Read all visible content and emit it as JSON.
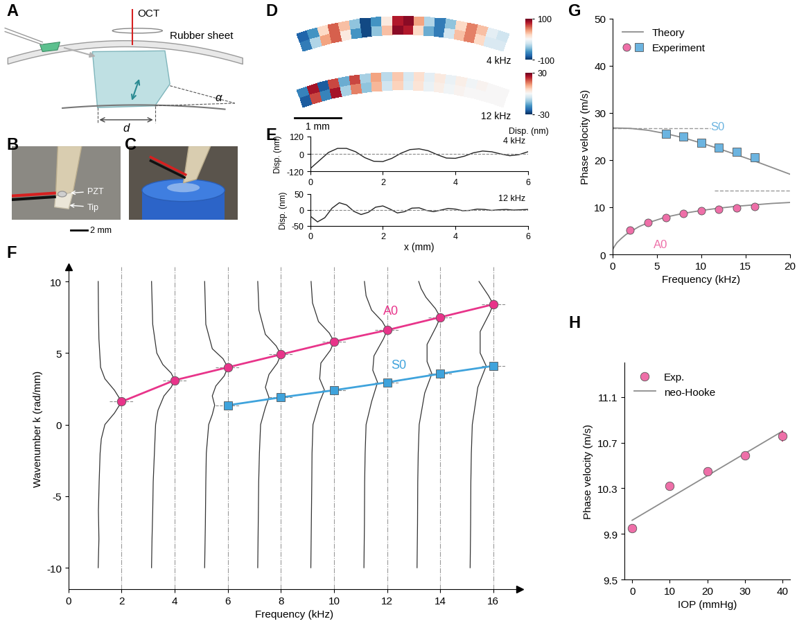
{
  "chart_data": [
    {
      "type": "heatmap",
      "panel": "D",
      "x_extent": [
        0,
        4.7
      ],
      "scale_bar": {
        "length": 1,
        "label": "1 mm"
      },
      "colorbar_label": "Disp. (nm)",
      "maps": [
        {
          "annotation": "4 kHz",
          "colorbar_range": [
            -100,
            100
          ],
          "colorbar_ticks": [
            -100,
            100
          ],
          "cells": [
            [
              -80,
              -60,
              20,
              60,
              30,
              -40,
              -90,
              -60,
              10,
              80,
              90,
              40,
              -30,
              -70,
              -40,
              20,
              50,
              30,
              -10,
              -20
            ],
            [
              -70,
              -30,
              40,
              60,
              10,
              -60,
              -90,
              -40,
              30,
              90,
              80,
              20,
              -50,
              -70,
              -20,
              30,
              50,
              20,
              -15,
              -15
            ]
          ]
        },
        {
          "annotation": "12 kHz",
          "colorbar_range": [
            -30,
            30
          ],
          "colorbar_ticks": [
            -30,
            30
          ],
          "cells": [
            [
              -20,
              25,
              -25,
              20,
              -15,
              20,
              -10,
              12,
              -8,
              8,
              -5,
              5,
              -3,
              3,
              -2,
              2,
              -1,
              1,
              0,
              0
            ],
            [
              -25,
              20,
              -20,
              25,
              -10,
              15,
              -12,
              10,
              -6,
              7,
              -4,
              4,
              -2,
              2,
              -1,
              1,
              0,
              0,
              0,
              0
            ]
          ]
        }
      ]
    },
    {
      "type": "line",
      "panel": "E",
      "annotation": "4 kHz",
      "ylabel": "Disp. (nm)",
      "color": "#222222",
      "baseline": 0,
      "x": [
        0,
        0.25,
        0.5,
        0.75,
        1,
        1.25,
        1.5,
        1.75,
        2,
        2.25,
        2.5,
        2.75,
        3,
        3.25,
        3.5,
        3.75,
        4,
        4.25,
        4.5,
        4.75,
        5,
        5.25,
        5.5,
        5.75,
        6
      ],
      "values": [
        -100,
        -45,
        10,
        38,
        38,
        15,
        -25,
        -50,
        -52,
        -30,
        5,
        30,
        35,
        22,
        -5,
        -28,
        -30,
        -15,
        8,
        20,
        15,
        0,
        -12,
        -5,
        15
      ],
      "xlim": [
        0,
        6
      ],
      "ylim": [
        -120,
        120
      ],
      "xticks": [
        0,
        2,
        4,
        6
      ],
      "yticks": [
        -120,
        0,
        120
      ]
    },
    {
      "type": "line",
      "annotation": "12 kHz",
      "ylabel": "Disp. (nm)",
      "xlabel": "x (mm)",
      "color": "#222222",
      "baseline": 0,
      "x": [
        0,
        0.2,
        0.4,
        0.6,
        0.8,
        1.0,
        1.2,
        1.4,
        1.6,
        1.8,
        2.0,
        2.2,
        2.4,
        2.6,
        2.8,
        3.0,
        3.2,
        3.4,
        3.6,
        3.8,
        4.0,
        4.2,
        4.4,
        4.6,
        4.8,
        5.0,
        5.2,
        5.4,
        5.6,
        5.8,
        6.0
      ],
      "values": [
        -20,
        -38,
        -25,
        5,
        22,
        15,
        -5,
        -15,
        -8,
        8,
        12,
        2,
        -10,
        -6,
        5,
        6,
        -2,
        -6,
        -1,
        4,
        2,
        -3,
        -2,
        2,
        1,
        -2,
        0,
        1,
        -1,
        0,
        1
      ],
      "xlim": [
        0,
        6
      ],
      "ylim": [
        -50,
        50
      ],
      "xticks": [
        0,
        2,
        4,
        6
      ],
      "yticks": [
        -50,
        0,
        50
      ]
    },
    {
      "type": "line",
      "panel": "F",
      "xlabel": "Frequency (kHz)",
      "ylabel": "Wavenumber k (rad/mm)",
      "xlim": [
        0,
        17
      ],
      "ylim": [
        -11.5,
        11
      ],
      "xticks": [
        0,
        2,
        4,
        6,
        8,
        10,
        12,
        14,
        16
      ],
      "yticks": [
        -10,
        -5,
        0,
        5,
        10
      ],
      "spectra": [
        {
          "frequency": 2,
          "k": [
            -10,
            -8,
            -6,
            -4,
            -2,
            -1,
            0,
            0.8,
            1.6,
            2.4,
            3.2,
            4,
            6,
            8,
            10
          ],
          "amplitude": [
            0.02,
            0.05,
            0.03,
            0.06,
            0.1,
            0.15,
            0.3,
            0.7,
            1.0,
            0.7,
            0.3,
            0.12,
            0.05,
            0.03,
            0.02
          ]
        },
        {
          "frequency": 4,
          "k": [
            -10,
            -8,
            -6,
            -4,
            -2,
            0,
            1,
            2,
            2.6,
            3.1,
            3.6,
            4.2,
            5,
            7,
            10
          ],
          "amplitude": [
            0.03,
            0.05,
            0.08,
            0.1,
            0.15,
            0.2,
            0.3,
            0.55,
            0.85,
            1.0,
            0.85,
            0.5,
            0.25,
            0.08,
            0.03
          ]
        },
        {
          "frequency": 6,
          "k": [
            -10,
            -7,
            -4,
            -2,
            0,
            0.7,
            1.35,
            2,
            2.7,
            3.4,
            4.0,
            4.6,
            5.3,
            7,
            10
          ],
          "amplitude": [
            0.03,
            0.06,
            0.08,
            0.1,
            0.2,
            0.35,
            0.45,
            0.35,
            0.5,
            0.85,
            1.0,
            0.8,
            0.35,
            0.08,
            0.03
          ]
        },
        {
          "frequency": 8,
          "k": [
            -10,
            -7,
            -4,
            -2,
            0,
            1.2,
            1.9,
            2.6,
            3.5,
            4.3,
            4.9,
            5.5,
            6.3,
            8,
            10
          ],
          "amplitude": [
            0.03,
            0.05,
            0.07,
            0.1,
            0.15,
            0.35,
            0.5,
            0.35,
            0.5,
            0.85,
            1.0,
            0.8,
            0.35,
            0.08,
            0.03
          ]
        },
        {
          "frequency": 10,
          "k": [
            -10,
            -7,
            -4,
            -2,
            0,
            1.6,
            2.4,
            3.2,
            4.3,
            5.2,
            5.8,
            6.4,
            7.2,
            8.5,
            10
          ],
          "amplitude": [
            0.03,
            0.05,
            0.07,
            0.08,
            0.12,
            0.4,
            0.6,
            0.4,
            0.45,
            0.85,
            1.0,
            0.8,
            0.35,
            0.1,
            0.04
          ]
        },
        {
          "frequency": 12,
          "k": [
            -10,
            -7,
            -4,
            -2,
            0,
            1.6,
            2.95,
            3.8,
            4.8,
            6.0,
            6.6,
            7.2,
            8.0,
            9,
            10
          ],
          "amplitude": [
            0.03,
            0.05,
            0.06,
            0.08,
            0.12,
            0.35,
            0.6,
            0.4,
            0.45,
            0.85,
            1.0,
            0.8,
            0.35,
            0.12,
            0.05
          ]
        },
        {
          "frequency": 14,
          "k": [
            -10,
            -7,
            -4,
            -2,
            0,
            2.2,
            3.55,
            4.4,
            5.6,
            6.9,
            7.5,
            8.1,
            8.9,
            9.5,
            10
          ],
          "amplitude": [
            0.03,
            0.05,
            0.06,
            0.08,
            0.12,
            0.35,
            0.65,
            0.45,
            0.45,
            0.85,
            1.0,
            0.8,
            0.4,
            0.2,
            0.1
          ]
        },
        {
          "frequency": 16,
          "k": [
            -10,
            -7,
            -4,
            -2,
            0,
            2.6,
            4.1,
            5.0,
            6.5,
            7.8,
            8.4,
            9.0,
            9.5,
            10
          ],
          "amplitude": [
            0.03,
            0.05,
            0.06,
            0.08,
            0.12,
            0.35,
            0.7,
            0.45,
            0.45,
            0.85,
            1.0,
            0.8,
            0.6,
            0.4
          ]
        }
      ],
      "series": [
        {
          "name": "A0",
          "color": "#e8348a",
          "marker": "circle",
          "x": [
            2,
            4,
            6,
            8,
            10,
            12,
            14,
            16
          ],
          "values": [
            1.6,
            3.1,
            4.0,
            4.9,
            5.8,
            6.6,
            7.5,
            8.4
          ]
        },
        {
          "name": "S0",
          "color": "#3fa3dc",
          "marker": "square",
          "x": [
            6,
            8,
            10,
            12,
            14,
            16
          ],
          "values": [
            1.35,
            1.9,
            2.4,
            2.95,
            3.55,
            4.1
          ]
        }
      ]
    },
    {
      "type": "line",
      "panel": "G",
      "xlabel": "Frequency (kHz)",
      "ylabel": "Phase velocity (m/s)",
      "xlim": [
        0,
        20
      ],
      "ylim": [
        0,
        50
      ],
      "xticks": [
        0,
        5,
        10,
        15,
        20
      ],
      "yticks": [
        0,
        10,
        20,
        30,
        40,
        50
      ],
      "legend": "upper left",
      "theory_name": "Theory",
      "experiment_name": "Experiment",
      "theory_color": "#8c8c8c",
      "series": [
        {
          "name": "S0",
          "color": "#6cb4e0",
          "marker": "square",
          "theory_x": [
            0,
            2,
            4,
            6,
            8,
            10,
            12,
            14,
            16,
            18,
            20
          ],
          "theory_values": [
            26.8,
            26.7,
            26.3,
            25.6,
            24.7,
            23.6,
            22.4,
            21.1,
            19.8,
            18.4,
            17.0
          ],
          "x": [
            6,
            8,
            10,
            12,
            14,
            16
          ],
          "values": [
            25.5,
            24.9,
            23.6,
            22.6,
            21.7,
            20.5
          ],
          "asymptote": 26.8,
          "asymptote_x": [
            0,
            11
          ]
        },
        {
          "name": "A0",
          "color": "#ee6fa8",
          "marker": "circle",
          "theory_x": [
            0,
            0.25,
            0.5,
            1,
            1.5,
            2,
            3,
            4,
            6,
            8,
            10,
            12,
            14,
            16,
            18,
            20
          ],
          "theory_values": [
            1.0,
            1.8,
            2.5,
            3.4,
            4.2,
            4.8,
            5.9,
            6.7,
            7.9,
            8.7,
            9.3,
            9.8,
            10.2,
            10.5,
            10.8,
            11.0
          ],
          "x": [
            2,
            4,
            6,
            8,
            10,
            12,
            14,
            16
          ],
          "values": [
            5.2,
            6.7,
            7.8,
            8.6,
            9.3,
            9.6,
            9.9,
            10.2
          ],
          "asymptote": 13.5,
          "asymptote_x": [
            11.5,
            20
          ]
        }
      ]
    },
    {
      "type": "scatter",
      "panel": "H",
      "xlabel": "IOP (mmHg)",
      "ylabel": "Phase velocity (m/s)",
      "xlim": [
        -2,
        42
      ],
      "ylim": [
        9.5,
        11.4
      ],
      "xticks": [
        0,
        10,
        20,
        30,
        40
      ],
      "yticks": [
        9.5,
        9.9,
        10.3,
        10.7,
        11.1
      ],
      "legend": "upper left",
      "series": [
        {
          "name": "Exp.",
          "color": "#ee6fa8",
          "marker": "circle",
          "x": [
            0,
            10,
            20,
            30,
            40
          ],
          "values": [
            9.95,
            10.32,
            10.45,
            10.59,
            10.76
          ],
          "errors": [
            0.02,
            0.02,
            0.02,
            0.02,
            0.05
          ]
        },
        {
          "name": "neo-Hooke",
          "type": "line",
          "color": "#8c8c8c",
          "x": [
            0,
            40
          ],
          "values": [
            10.02,
            10.8
          ]
        }
      ]
    }
  ],
  "diagrams": {
    "A": {
      "panel": "A",
      "oct": "OCT",
      "sheet": "Rubber sheet",
      "angle": "α",
      "distance": "d"
    },
    "B": {
      "panel": "B",
      "pzt": "PZT",
      "tip": "Tip",
      "scale": "2 mm"
    },
    "C": {
      "panel": "C"
    }
  }
}
